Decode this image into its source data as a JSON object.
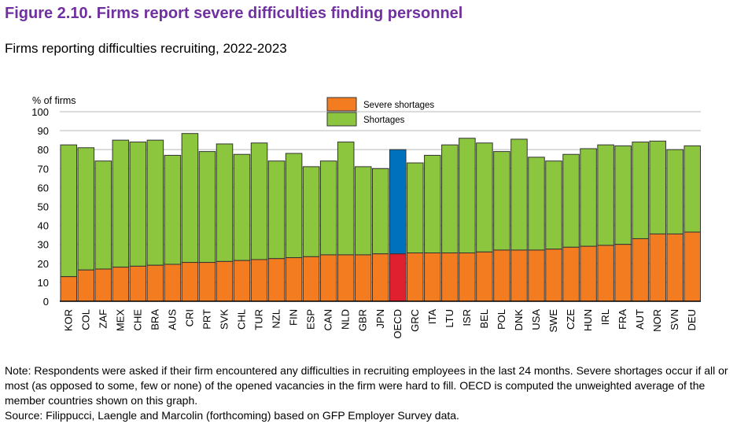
{
  "title": "Figure 2.10. Firms report severe difficulties finding personnel",
  "subtitle": "Firms reporting difficulties recruiting, 2022-2023",
  "note": "Note: Respondents were asked if their firm encountered any difficulties in recruiting employees in the last 24 months. Severe shortages occur if all or most (as opposed to some, few or none) of the opened vacancies in the firm were hard to fill. OECD is computed the unweighted average of the member countries shown on this graph.",
  "source": "Source: Filippucci, Laengle and Marcolin (forthcoming) based on GFP Employer Survey data.",
  "colors": {
    "severe": "#f47c20",
    "shortages": "#8cc63f",
    "oecd_severe": "#e0202e",
    "oecd_total": "#0071bc"
  },
  "chart_data": {
    "type": "bar",
    "stacked": true,
    "ylabel": "% of firms",
    "ylim": [
      0,
      100
    ],
    "yticks": [
      0,
      10,
      20,
      30,
      40,
      50,
      60,
      70,
      80,
      90,
      100
    ],
    "grid": true,
    "legend_position": "top-center",
    "categories": [
      "KOR",
      "COL",
      "ZAF",
      "MEX",
      "CHE",
      "BRA",
      "AUS",
      "CRI",
      "PRT",
      "SVK",
      "CHL",
      "TUR",
      "NZL",
      "FIN",
      "ESP",
      "CAN",
      "NLD",
      "GBR",
      "JPN",
      "OECD",
      "GRC",
      "ITA",
      "LTU",
      "ISR",
      "BEL",
      "POL",
      "DNK",
      "USA",
      "SWE",
      "CZE",
      "HUN",
      "IRL",
      "FRA",
      "AUT",
      "NOR",
      "SVN",
      "DEU"
    ],
    "highlight": "OECD",
    "series": [
      {
        "name": "Severe shortages",
        "values": [
          13,
          16.5,
          17,
          18,
          18.5,
          19,
          19.5,
          20.5,
          20.5,
          21,
          21.5,
          22,
          22.5,
          23,
          23.5,
          24.5,
          24.5,
          24.5,
          25,
          25,
          25.5,
          25.5,
          25.5,
          25.5,
          26,
          27,
          27,
          27,
          27.5,
          28.5,
          29,
          29.5,
          30,
          33,
          35.5,
          35.5,
          36.5
        ]
      },
      {
        "name": "Shortages",
        "total_values": [
          82.5,
          81,
          74,
          85,
          84,
          85,
          77,
          88.5,
          79,
          83,
          77.5,
          83.5,
          74,
          78,
          71,
          74,
          84,
          71,
          70,
          80,
          73,
          77,
          82.5,
          86,
          83.5,
          79,
          85.5,
          76,
          74,
          77.5,
          80.5,
          82.5,
          82,
          84,
          84.5,
          80,
          82
        ]
      }
    ]
  }
}
